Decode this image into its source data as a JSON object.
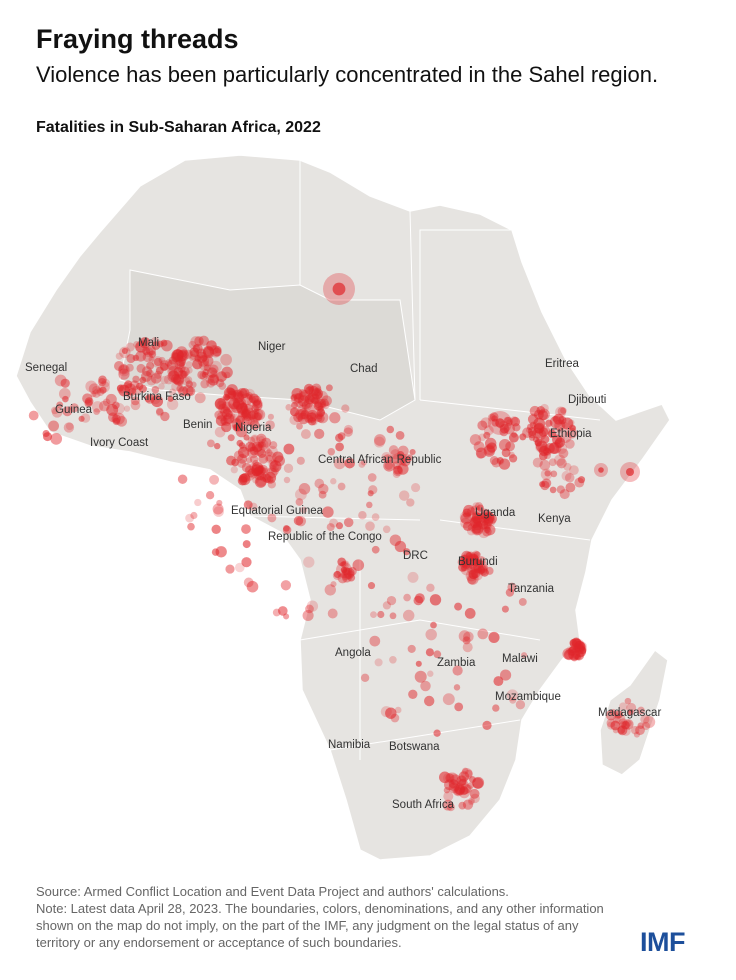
{
  "header": {
    "title": "Fraying threads",
    "subtitle": "Violence has been particularly concentrated in the Sahel region.",
    "map_title": "Fatalities in Sub-Saharan Africa, 2022"
  },
  "map": {
    "labels": [
      "Senegal",
      "Mali",
      "Niger",
      "Chad",
      "Burkina Faso",
      "Guinea",
      "Benin",
      "Ivory Coast",
      "Nigeria",
      "Eritrea",
      "Djibouti",
      "Ethiopia",
      "Central African Republic",
      "Equatorial Guinea",
      "Uganda",
      "Kenya",
      "Republic of the Congo",
      "DRC",
      "Burundi",
      "Tanzania",
      "Angola",
      "Zambia",
      "Malawi",
      "Mozambique",
      "Madagascar",
      "Namibia",
      "Botswana",
      "South Africa"
    ]
  },
  "footer": {
    "source": "Source: Armed Conflict Location and Event Data Project and authors' calculations.",
    "note": "Note: Latest data April 28, 2023. The boundaries, colors, denominations, and any other information shown on the map do not imply, on the part of the IMF, any judgment on the legal status of any territory or any endorsement or acceptance of such boundaries.",
    "logo": "IMF"
  }
}
